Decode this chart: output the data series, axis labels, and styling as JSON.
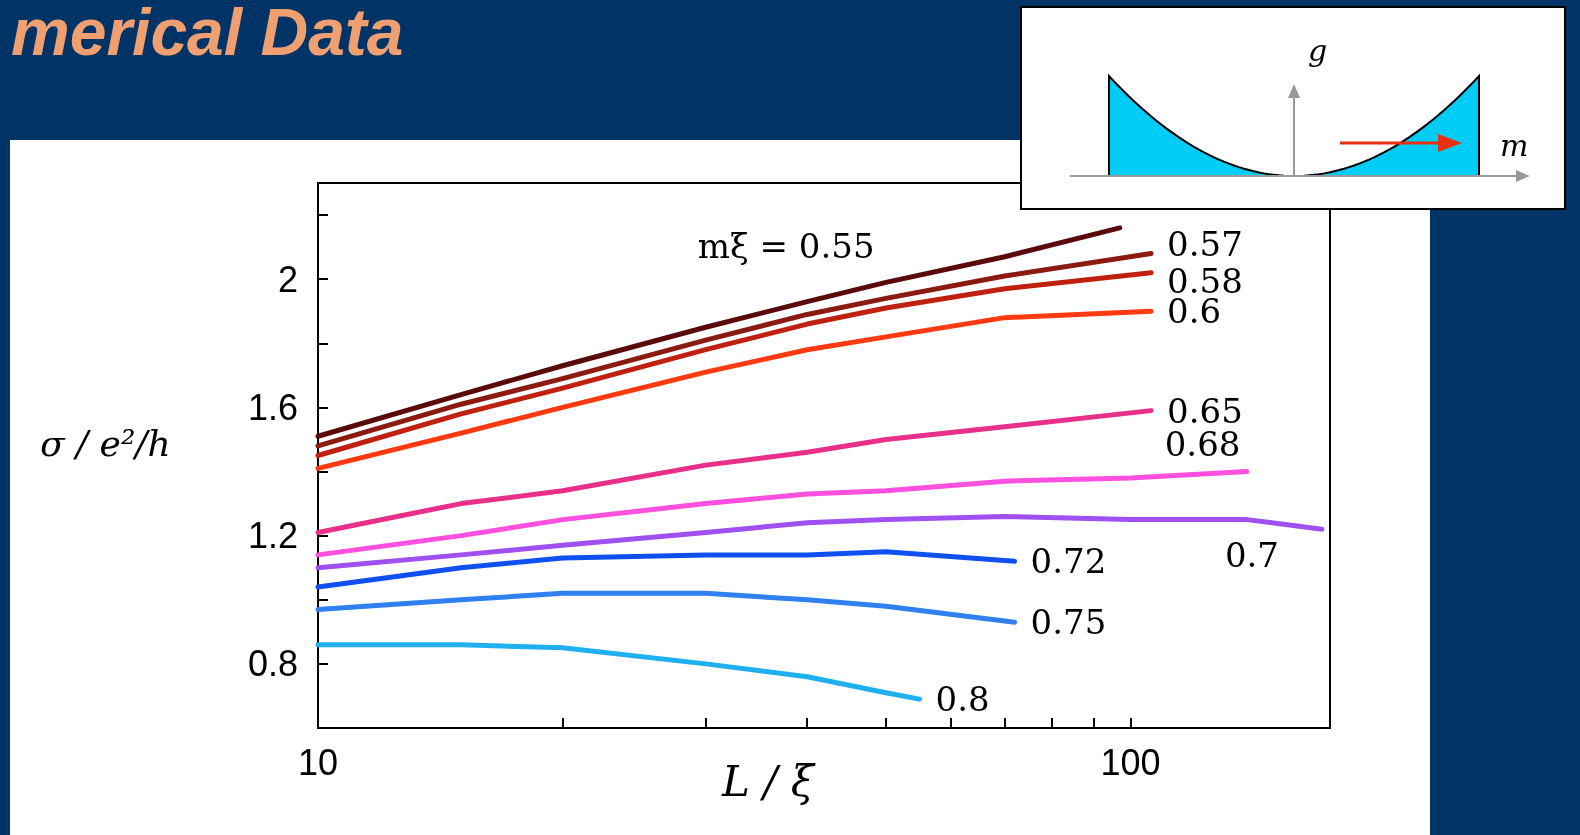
{
  "chart_data": {
    "type": "line",
    "title": "merical Data",
    "xlabel": "L / ξ",
    "ylabel": "σ / e²/h",
    "annotations": [
      "g",
      "m"
    ],
    "log": "x",
    "legend": false,
    "grid": false,
    "marker": "none",
    "line_style": "solid",
    "xlim": [
      10,
      176
    ],
    "xticks": [
      10,
      {
        "value": 20,
        "label": null
      },
      {
        "value": 30,
        "label": null
      },
      {
        "value": 40,
        "label": null
      },
      {
        "value": 50,
        "label": null
      },
      {
        "value": 60,
        "label": null
      },
      {
        "value": 70,
        "label": null
      },
      {
        "value": 80,
        "label": null
      },
      {
        "value": 90,
        "label": null
      },
      100
    ],
    "ylim": [
      0.6,
      2.3
    ],
    "yticks": [
      {
        "value": 0.6,
        "label": null
      },
      0.8,
      {
        "value": 1.0,
        "label": null
      },
      1.2,
      {
        "value": 1.4,
        "label": null
      },
      1.6,
      {
        "value": 1.8,
        "label": null
      },
      2,
      {
        "value": 2.2,
        "label": null
      }
    ],
    "series": [
      {
        "name": "mξ = 0.55",
        "color": "#5a0a0a",
        "x": [
          10,
          15,
          20,
          30,
          40,
          50,
          70,
          97
        ],
        "values": [
          1.51,
          1.64,
          1.73,
          1.85,
          1.93,
          1.99,
          2.07,
          2.16
        ]
      },
      {
        "name": "0.57",
        "color": "#8b1a10",
        "x": [
          10,
          15,
          20,
          30,
          40,
          50,
          70,
          106
        ],
        "values": [
          1.48,
          1.61,
          1.69,
          1.81,
          1.89,
          1.94,
          2.01,
          2.08
        ]
      },
      {
        "name": "0.58",
        "color": "#c02010",
        "x": [
          10,
          15,
          20,
          30,
          40,
          50,
          70,
          106
        ],
        "values": [
          1.45,
          1.58,
          1.66,
          1.78,
          1.86,
          1.91,
          1.97,
          2.02
        ]
      },
      {
        "name": "0.6",
        "color": "#ff3a10",
        "x": [
          10,
          15,
          20,
          30,
          40,
          50,
          70,
          106
        ],
        "values": [
          1.41,
          1.52,
          1.6,
          1.71,
          1.78,
          1.82,
          1.88,
          1.9
        ]
      },
      {
        "name": "0.65",
        "color": "#e8308a",
        "x": [
          10,
          15,
          20,
          30,
          40,
          50,
          70,
          106
        ],
        "values": [
          1.21,
          1.3,
          1.34,
          1.42,
          1.46,
          1.5,
          1.54,
          1.59
        ]
      },
      {
        "name": "0.68",
        "color": "#ff50e0",
        "x": [
          10,
          15,
          20,
          30,
          40,
          50,
          70,
          100,
          139
        ],
        "values": [
          1.14,
          1.2,
          1.25,
          1.3,
          1.33,
          1.34,
          1.37,
          1.38,
          1.4
        ]
      },
      {
        "name": "0.7",
        "color": "#a050f0",
        "x": [
          10,
          15,
          20,
          30,
          40,
          50,
          70,
          100,
          139,
          172
        ],
        "values": [
          1.1,
          1.14,
          1.17,
          1.21,
          1.24,
          1.25,
          1.26,
          1.25,
          1.25,
          1.22
        ]
      },
      {
        "name": "0.72",
        "color": "#1050f0",
        "x": [
          10,
          15,
          20,
          30,
          40,
          50,
          72
        ],
        "values": [
          1.04,
          1.1,
          1.13,
          1.14,
          1.14,
          1.15,
          1.12
        ]
      },
      {
        "name": "0.75",
        "color": "#3080f0",
        "x": [
          10,
          15,
          20,
          30,
          40,
          50,
          72
        ],
        "values": [
          0.97,
          1.0,
          1.02,
          1.02,
          1.0,
          0.98,
          0.93
        ]
      },
      {
        "name": "0.8",
        "color": "#20b0f0",
        "x": [
          10,
          15,
          20,
          30,
          40,
          50,
          55
        ],
        "values": [
          0.86,
          0.86,
          0.85,
          0.8,
          0.76,
          0.71,
          0.69
        ]
      }
    ]
  }
}
